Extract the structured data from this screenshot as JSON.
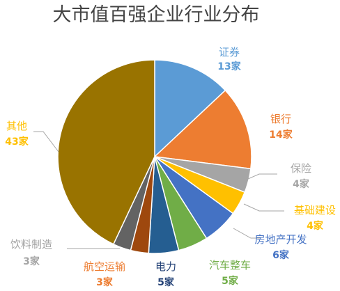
{
  "chart_data": {
    "type": "pie",
    "title": "大市值百强企业行业分布",
    "unit": "家",
    "slices": [
      {
        "label": "证券",
        "value": 13,
        "count_label": "13家",
        "color": "#5B9BD5"
      },
      {
        "label": "银行",
        "value": 14,
        "count_label": "14家",
        "color": "#ED7D31"
      },
      {
        "label": "保险",
        "value": 4,
        "count_label": "4家",
        "color": "#A5A5A5"
      },
      {
        "label": "基础建设",
        "value": 4,
        "count_label": "4家",
        "color": "#FFC000"
      },
      {
        "label": "房地产开发",
        "value": 6,
        "count_label": "6家",
        "color": "#4472C4"
      },
      {
        "label": "汽车整车",
        "value": 5,
        "count_label": "5家",
        "color": "#70AD47"
      },
      {
        "label": "电力",
        "value": 5,
        "count_label": "5家",
        "color": "#255E91"
      },
      {
        "label": "航空运输",
        "value": 3,
        "count_label": "3家",
        "color": "#9E480E"
      },
      {
        "label": "饮料制造",
        "value": 3,
        "count_label": "3家",
        "color": "#636363"
      },
      {
        "label": "其他",
        "value": 43,
        "count_label": "43家",
        "color": "#997300"
      }
    ],
    "label_colors": [
      "#5B9BD5",
      "#ED7D31",
      "#A5A5A5",
      "#FFC000",
      "#4472C4",
      "#70AD47",
      "#264478",
      "#ED7D31",
      "#A5A5A5",
      "#FFC000"
    ],
    "legend": "none"
  }
}
